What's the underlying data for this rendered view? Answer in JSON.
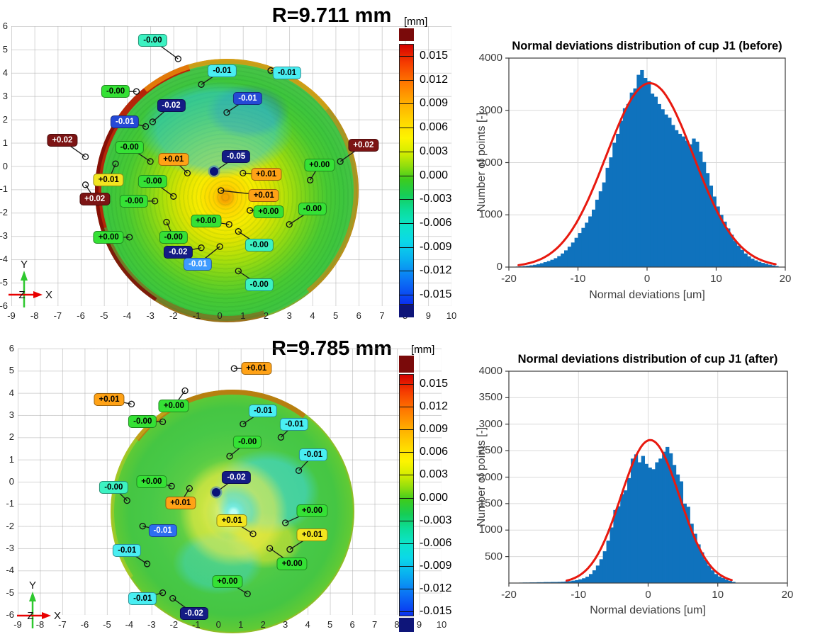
{
  "figure": {
    "background": "#ffffff",
    "bar_color": "#0f72bd",
    "fit_color": "#e8190f"
  },
  "chart_data": [
    {
      "id": "map_before",
      "type": "heatmap",
      "title": "R=9.711 mm",
      "colorbar": {
        "unit": "[mm]",
        "ticks": [
          "0.015",
          "0.012",
          "0.009",
          "0.006",
          "0.003",
          "0.000",
          "-0.003",
          "-0.006",
          "-0.009",
          "-0.012",
          "-0.015"
        ],
        "over_color": "#7a0a0a",
        "under_color": "#0e1579"
      },
      "xlim": [
        -9,
        10
      ],
      "ylim": [
        -6,
        6
      ],
      "x_ticks": [
        -9,
        -8,
        -7,
        -6,
        -5,
        -4,
        -3,
        -2,
        -1,
        0,
        1,
        2,
        3,
        4,
        5,
        6,
        7,
        8,
        9,
        10
      ],
      "y_ticks": [
        6,
        5,
        4,
        3,
        2,
        1,
        0,
        -1,
        -2,
        -3,
        -4,
        -5,
        -6
      ],
      "triad": {
        "x": "X",
        "y": "Y",
        "z": "Z"
      },
      "center_point": [
        -0.24,
        -0.24
      ],
      "annotations": [
        {
          "v": "-0.00",
          "bg": "#3cf2c2",
          "fg": "#000000",
          "l": [
            -2.9,
            5.4
          ],
          "p": [
            -1.8,
            4.6
          ]
        },
        {
          "v": "-0.01",
          "bg": "#49eef2",
          "fg": "#000000",
          "l": [
            0.1,
            4.1
          ],
          "p": [
            -0.8,
            3.5
          ]
        },
        {
          "v": "-0.01",
          "bg": "#49eef2",
          "fg": "#000000",
          "l": [
            2.9,
            4.0
          ],
          "p": [
            2.2,
            4.1
          ]
        },
        {
          "v": "-0.00",
          "bg": "#35e135",
          "fg": "#000000",
          "l": [
            -4.5,
            3.2
          ],
          "p": [
            -3.6,
            3.2
          ]
        },
        {
          "v": "-0.02",
          "bg": "#141c85",
          "fg": "#ffffff",
          "l": [
            -2.1,
            2.6
          ],
          "p": [
            -2.9,
            1.9
          ]
        },
        {
          "v": "-0.01",
          "bg": "#2549d6",
          "fg": "#ffffff",
          "l": [
            1.2,
            2.9
          ],
          "p": [
            0.3,
            2.3
          ]
        },
        {
          "v": "-0.01",
          "bg": "#2549d6",
          "fg": "#ffffff",
          "l": [
            -4.1,
            1.9
          ],
          "p": [
            -3.2,
            1.7
          ]
        },
        {
          "v": "+0.02",
          "bg": "#7c1414",
          "fg": "#ffffff",
          "l": [
            -6.8,
            1.1
          ],
          "p": [
            -5.8,
            0.4
          ]
        },
        {
          "v": "-0.00",
          "bg": "#35e135",
          "fg": "#000000",
          "l": [
            -3.9,
            0.8
          ],
          "p": [
            -3.0,
            0.2
          ]
        },
        {
          "v": "+0.01",
          "bg": "#ffa216",
          "fg": "#000000",
          "l": [
            -2.0,
            0.3
          ],
          "p": [
            -1.4,
            -0.3
          ]
        },
        {
          "v": "-0.05",
          "bg": "#141c85",
          "fg": "#ffffff",
          "l": [
            0.7,
            0.4
          ],
          "p": [
            -0.24,
            -0.24
          ]
        },
        {
          "v": "+0.01",
          "bg": "#ffa216",
          "fg": "#000000",
          "l": [
            2.0,
            -0.35
          ],
          "p": [
            1.0,
            -0.3
          ]
        },
        {
          "v": "+0.01",
          "bg": "#ffa216",
          "fg": "#000000",
          "l": [
            1.9,
            -1.25
          ],
          "p": [
            0.05,
            -1.05
          ]
        },
        {
          "v": "+0.00",
          "bg": "#35e135",
          "fg": "#000000",
          "l": [
            4.3,
            0.05
          ],
          "p": [
            3.9,
            -0.6
          ]
        },
        {
          "v": "+0.02",
          "bg": "#7c1414",
          "fg": "#ffffff",
          "l": [
            6.2,
            0.9
          ],
          "p": [
            5.2,
            0.2
          ]
        },
        {
          "v": "+0.01",
          "bg": "#f2e520",
          "fg": "#000000",
          "l": [
            -4.8,
            -0.6
          ],
          "p": [
            -4.5,
            0.1
          ]
        },
        {
          "v": "+0.02",
          "bg": "#7c1414",
          "fg": "#ffffff",
          "l": [
            -5.4,
            -1.4
          ],
          "p": [
            -5.8,
            -0.8
          ]
        },
        {
          "v": "-0.00",
          "bg": "#35e135",
          "fg": "#000000",
          "l": [
            -2.9,
            -0.65
          ],
          "p": [
            -2.0,
            -1.3
          ]
        },
        {
          "v": "-0.00",
          "bg": "#35e135",
          "fg": "#000000",
          "l": [
            -3.7,
            -1.5
          ],
          "p": [
            -2.8,
            -1.5
          ]
        },
        {
          "v": "+0.00",
          "bg": "#35e135",
          "fg": "#000000",
          "l": [
            2.1,
            -1.95
          ],
          "p": [
            1.3,
            -1.9
          ]
        },
        {
          "v": "+0.00",
          "bg": "#35e135",
          "fg": "#000000",
          "l": [
            -0.6,
            -2.35
          ],
          "p": [
            0.4,
            -2.5
          ]
        },
        {
          "v": "-0.00",
          "bg": "#3cf2c2",
          "fg": "#000000",
          "l": [
            1.7,
            -3.4
          ],
          "p": [
            0.8,
            -2.8
          ]
        },
        {
          "v": "+0.00",
          "bg": "#35e135",
          "fg": "#000000",
          "l": [
            -4.8,
            -3.05
          ],
          "p": [
            -3.9,
            -3.05
          ]
        },
        {
          "v": "-0.00",
          "bg": "#35e135",
          "fg": "#000000",
          "l": [
            -2.0,
            -3.05
          ],
          "p": [
            -2.3,
            -2.4
          ]
        },
        {
          "v": "-0.02",
          "bg": "#141c85",
          "fg": "#ffffff",
          "l": [
            -1.8,
            -3.7
          ],
          "p": [
            -0.8,
            -3.5
          ]
        },
        {
          "v": "-0.01",
          "bg": "#3e9bff",
          "fg": "#ffffff",
          "l": [
            -0.95,
            -4.2
          ],
          "p": [
            0.0,
            -3.45
          ]
        },
        {
          "v": "-0.00",
          "bg": "#3cf2c2",
          "fg": "#000000",
          "l": [
            1.7,
            -5.1
          ],
          "p": [
            0.8,
            -4.5
          ]
        },
        {
          "v": "-0.00",
          "bg": "#35e135",
          "fg": "#000000",
          "l": [
            4.0,
            -1.85
          ],
          "p": [
            3.0,
            -2.5
          ]
        }
      ]
    },
    {
      "id": "map_after",
      "type": "heatmap",
      "title": "R=9.785 mm",
      "colorbar": {
        "unit": "[mm]",
        "ticks": [
          "0.015",
          "0.012",
          "0.009",
          "0.006",
          "0.003",
          "0.000",
          "-0.003",
          "-0.006",
          "-0.009",
          "-0.012",
          "-0.015"
        ],
        "over_color": "#7a0a0a",
        "under_color": "#0e1579"
      },
      "xlim": [
        -9,
        10
      ],
      "ylim": [
        -6,
        6
      ],
      "x_ticks": [
        -9,
        -8,
        -7,
        -6,
        -5,
        -4,
        -3,
        -2,
        -1,
        0,
        1,
        2,
        3,
        4,
        5,
        6,
        7,
        8,
        9,
        10
      ],
      "y_ticks": [
        6,
        5,
        4,
        3,
        2,
        1,
        0,
        -1,
        -2,
        -3,
        -4,
        -5,
        -6
      ],
      "triad": {
        "x": "X",
        "y": "Y",
        "z": "Z"
      },
      "center_point": [
        -0.11,
        -0.48
      ],
      "annotations": [
        {
          "v": "+0.01",
          "bg": "#ffa216",
          "fg": "#000000",
          "l": [
            1.7,
            5.1
          ],
          "p": [
            0.7,
            5.1
          ]
        },
        {
          "v": "+0.01",
          "bg": "#ffa216",
          "fg": "#000000",
          "l": [
            -4.9,
            3.7
          ],
          "p": [
            -3.9,
            3.5
          ]
        },
        {
          "v": "+0.00",
          "bg": "#35e135",
          "fg": "#000000",
          "l": [
            -2.0,
            3.4
          ],
          "p": [
            -1.5,
            4.1
          ]
        },
        {
          "v": "-0.00",
          "bg": "#35e135",
          "fg": "#000000",
          "l": [
            -3.4,
            2.7
          ],
          "p": [
            -2.5,
            2.7
          ]
        },
        {
          "v": "-0.01",
          "bg": "#49eef2",
          "fg": "#000000",
          "l": [
            2.0,
            3.2
          ],
          "p": [
            1.1,
            2.6
          ]
        },
        {
          "v": "-0.01",
          "bg": "#49eef2",
          "fg": "#000000",
          "l": [
            3.4,
            2.6
          ],
          "p": [
            2.8,
            2.0
          ]
        },
        {
          "v": "-0.00",
          "bg": "#35e135",
          "fg": "#000000",
          "l": [
            1.3,
            1.8
          ],
          "p": [
            0.5,
            1.15
          ]
        },
        {
          "v": "-0.01",
          "bg": "#49eef2",
          "fg": "#000000",
          "l": [
            4.25,
            1.2
          ],
          "p": [
            3.6,
            0.5
          ]
        },
        {
          "v": "-0.00",
          "bg": "#3cf2c2",
          "fg": "#000000",
          "l": [
            -4.7,
            -0.25
          ],
          "p": [
            -4.1,
            -0.85
          ]
        },
        {
          "v": "+0.00",
          "bg": "#35e135",
          "fg": "#000000",
          "l": [
            -3.0,
            0.0
          ],
          "p": [
            -2.1,
            -0.2
          ]
        },
        {
          "v": "+0.01",
          "bg": "#ffa216",
          "fg": "#000000",
          "l": [
            -1.7,
            -0.95
          ],
          "p": [
            -1.3,
            -0.3
          ]
        },
        {
          "v": "-0.02",
          "bg": "#141c85",
          "fg": "#ffffff",
          "l": [
            0.8,
            0.2
          ],
          "p": [
            -0.11,
            -0.48
          ]
        },
        {
          "v": "+0.01",
          "bg": "#f2e520",
          "fg": "#000000",
          "l": [
            0.6,
            -1.75
          ],
          "p": [
            1.55,
            -2.35
          ]
        },
        {
          "v": "-0.01",
          "bg": "#2e6ef0",
          "fg": "#ffffff",
          "l": [
            -2.5,
            -2.2
          ],
          "p": [
            -3.4,
            -2.0
          ]
        },
        {
          "v": "-0.01",
          "bg": "#49eef2",
          "fg": "#000000",
          "l": [
            -4.1,
            -3.1
          ],
          "p": [
            -3.2,
            -3.7
          ]
        },
        {
          "v": "+0.00",
          "bg": "#35e135",
          "fg": "#000000",
          "l": [
            4.2,
            -1.3
          ],
          "p": [
            3.0,
            -1.85
          ]
        },
        {
          "v": "+0.01",
          "bg": "#f2e520",
          "fg": "#000000",
          "l": [
            4.2,
            -2.4
          ],
          "p": [
            3.2,
            -3.05
          ]
        },
        {
          "v": "+0.00",
          "bg": "#35e135",
          "fg": "#000000",
          "l": [
            3.3,
            -3.7
          ],
          "p": [
            2.3,
            -3.0
          ]
        },
        {
          "v": "+0.00",
          "bg": "#35e135",
          "fg": "#000000",
          "l": [
            0.4,
            -4.5
          ],
          "p": [
            1.3,
            -5.05
          ]
        },
        {
          "v": "-0.01",
          "bg": "#49eef2",
          "fg": "#000000",
          "l": [
            -3.4,
            -5.25
          ],
          "p": [
            -2.5,
            -5.0
          ]
        },
        {
          "v": "-0.02",
          "bg": "#141c85",
          "fg": "#ffffff",
          "l": [
            -1.1,
            -5.95
          ],
          "p": [
            -2.05,
            -5.25
          ]
        }
      ]
    },
    {
      "id": "hist_before",
      "type": "bar",
      "title": "Normal deviations distribution of cup J1 (before)",
      "xlabel": "Normal deviations [um]",
      "ylabel": "Number of points [-]",
      "xlim": [
        -20,
        20
      ],
      "ylim": [
        0,
        4000
      ],
      "x_ticks": [
        -20,
        -10,
        0,
        10,
        20
      ],
      "y_ticks": [
        0,
        1000,
        2000,
        3000,
        4000
      ],
      "bin_start": -19,
      "bin_step": 0.5,
      "values": [
        10,
        14,
        20,
        26,
        34,
        44,
        58,
        74,
        94,
        115,
        140,
        170,
        210,
        260,
        320,
        390,
        470,
        560,
        650,
        750,
        850,
        970,
        1100,
        1290,
        1450,
        1620,
        1900,
        2100,
        2380,
        2550,
        2800,
        3040,
        3120,
        3340,
        3420,
        3680,
        3770,
        3620,
        3560,
        3320,
        3260,
        3120,
        3020,
        2920,
        2860,
        2720,
        2620,
        2550,
        2500,
        2420,
        2350,
        2460,
        2400,
        2210,
        2010,
        1800,
        1560,
        1350,
        1160,
        1000,
        870,
        740,
        620,
        500,
        410,
        330,
        260,
        205,
        160,
        128,
        100,
        80,
        62,
        46,
        32,
        20
      ],
      "fit": {
        "type": "gaussian",
        "amp": 3520,
        "mu": 0.4,
        "sigma": 6.3,
        "range": [
          -18.6,
          18.6
        ]
      }
    },
    {
      "id": "hist_after",
      "type": "bar",
      "title": "Normal deviations distribution of cup J1 (after)",
      "xlabel": "Normal deviations [um]",
      "ylabel": "Number of points [-]",
      "xlim": [
        -20,
        20
      ],
      "ylim": [
        0,
        4000
      ],
      "x_ticks": [
        -20,
        -10,
        0,
        10,
        20
      ],
      "y_ticks": [
        500,
        1000,
        1500,
        2000,
        2500,
        3000,
        3500,
        4000
      ],
      "bin_start": -19,
      "bin_step": 0.5,
      "values": [
        5,
        8,
        10,
        10,
        12,
        12,
        15,
        15,
        18,
        18,
        20,
        20,
        22,
        25,
        30,
        35,
        45,
        55,
        70,
        90,
        120,
        170,
        240,
        330,
        450,
        600,
        800,
        1050,
        1380,
        1450,
        1680,
        1750,
        1980,
        2350,
        2430,
        2280,
        2400,
        2250,
        2180,
        2150,
        2280,
        2350,
        2480,
        2570,
        2450,
        2230,
        2050,
        1920,
        1500,
        1440,
        1120,
        930,
        730,
        580,
        440,
        330,
        240,
        170,
        125,
        95,
        65,
        40,
        22,
        0,
        0,
        0,
        0,
        0,
        0,
        0,
        0,
        0,
        0,
        0,
        0,
        0
      ],
      "fit": {
        "type": "gaussian",
        "amp": 2700,
        "mu": 0.3,
        "sigma": 4.2,
        "range": [
          -11.7,
          12.0
        ]
      }
    }
  ]
}
